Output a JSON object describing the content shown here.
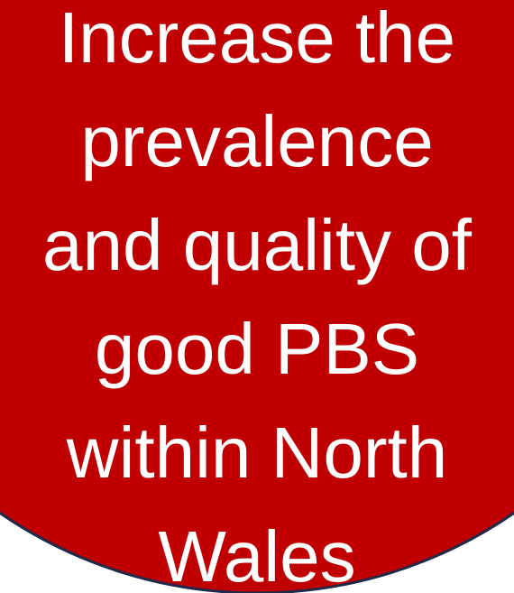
{
  "lines": [
    "Increase the",
    "prevalence",
    "and quality of",
    "good PBS",
    "within North",
    "Wales"
  ]
}
